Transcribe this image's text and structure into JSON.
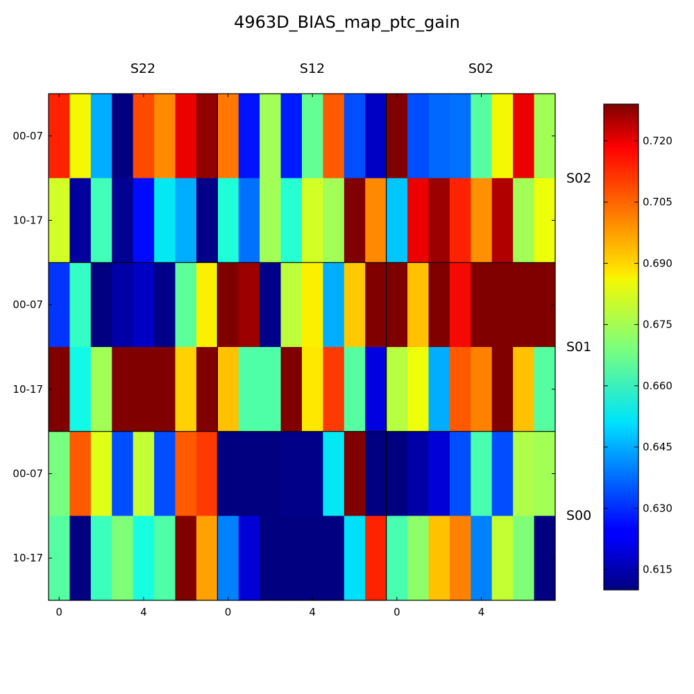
{
  "chart_data": {
    "type": "heatmap",
    "title": "4963D_BIAS_map_ptc_gain",
    "column_groups": [
      "S22",
      "S12",
      "S02"
    ],
    "row_groups": [
      "S02",
      "S01",
      "S00"
    ],
    "row_tick_labels": [
      "00-07",
      "10-17",
      "00-07",
      "10-17",
      "00-07",
      "10-17"
    ],
    "x_tick_labels": [
      "0",
      "4",
      "0",
      "4",
      "0",
      "4"
    ],
    "colorbar": {
      "vmin": 0.61,
      "vmax": 0.729,
      "ticks": [
        "0.615",
        "0.630",
        "0.645",
        "0.660",
        "0.675",
        "0.690",
        "0.705",
        "0.720"
      ],
      "colormap": "jet"
    },
    "values": [
      [
        0.714,
        0.687,
        0.645,
        0.61,
        0.709,
        0.701,
        0.718,
        0.727,
        0.703,
        0.627,
        0.675,
        0.628,
        0.666,
        0.707,
        0.634,
        0.617,
        0.729,
        0.634,
        0.637,
        0.638,
        0.664,
        0.687,
        0.718,
        0.675
      ],
      [
        0.682,
        0.613,
        0.661,
        0.612,
        0.626,
        0.652,
        0.645,
        0.611,
        0.656,
        0.638,
        0.675,
        0.657,
        0.682,
        0.675,
        0.729,
        0.701,
        0.648,
        0.718,
        0.726,
        0.714,
        0.7,
        0.724,
        0.675,
        0.686
      ],
      [
        0.631,
        0.659,
        0.61,
        0.614,
        0.617,
        0.611,
        0.665,
        0.688,
        0.729,
        0.726,
        0.611,
        0.679,
        0.688,
        0.645,
        0.693,
        0.729,
        0.729,
        0.694,
        0.729,
        0.717,
        0.729,
        0.729,
        0.729,
        0.729
      ],
      [
        0.729,
        0.654,
        0.675,
        0.729,
        0.729,
        0.729,
        0.692,
        0.729,
        0.694,
        0.663,
        0.663,
        0.729,
        0.689,
        0.711,
        0.664,
        0.62,
        0.678,
        0.686,
        0.645,
        0.707,
        0.702,
        0.729,
        0.694,
        0.664
      ],
      [
        0.669,
        0.707,
        0.684,
        0.634,
        0.68,
        0.634,
        0.707,
        0.711,
        0.61,
        0.61,
        0.61,
        0.611,
        0.611,
        0.652,
        0.729,
        0.61,
        0.61,
        0.614,
        0.619,
        0.634,
        0.662,
        0.634,
        0.677,
        0.675
      ],
      [
        0.664,
        0.61,
        0.66,
        0.67,
        0.655,
        0.663,
        0.729,
        0.698,
        0.64,
        0.619,
        0.61,
        0.61,
        0.61,
        0.61,
        0.651,
        0.714,
        0.662,
        0.672,
        0.694,
        0.702,
        0.64,
        0.68,
        0.67,
        0.61
      ]
    ]
  }
}
